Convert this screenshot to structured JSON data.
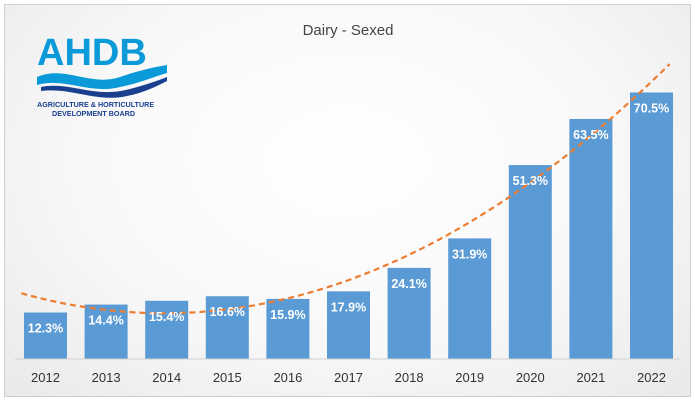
{
  "colors": {
    "bar": "#5b9bd5",
    "trendline": "#ed7d31",
    "logo_primary": "#0b9ad9",
    "logo_dark": "#1a3f8f"
  },
  "logo": {
    "name": "AHDB",
    "line1": "AGRICULTURE & HORTICULTURE",
    "line2": "DEVELOPMENT BOARD",
    "icon": "ahdb-wave-logo"
  },
  "chart_data": {
    "type": "bar",
    "title": "Dairy - Sexed",
    "xlabel": "",
    "ylabel": "",
    "categories": [
      "2012",
      "2013",
      "2014",
      "2015",
      "2016",
      "2017",
      "2018",
      "2019",
      "2020",
      "2021",
      "2022"
    ],
    "values": [
      12.3,
      14.4,
      15.4,
      16.6,
      15.9,
      17.9,
      24.1,
      31.9,
      51.3,
      63.5,
      70.5
    ],
    "labels": [
      "12.3%",
      "14.4%",
      "15.4%",
      "16.6%",
      "15.9%",
      "17.9%",
      "24.1%",
      "31.9%",
      "51.3%",
      "63.5%",
      "70.5%"
    ],
    "ylim": [
      0,
      82
    ],
    "grid": false,
    "legend": "none",
    "trendline": "polynomial"
  }
}
